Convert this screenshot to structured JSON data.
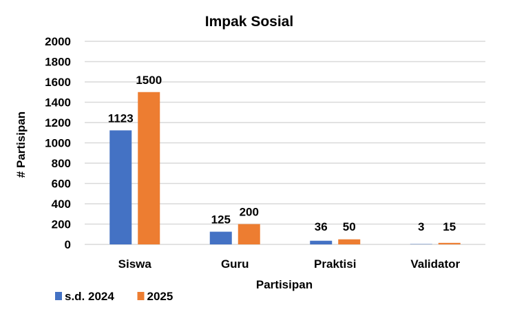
{
  "chart_data": {
    "type": "bar",
    "title": "Impak Sosial",
    "xlabel": "Partisipan",
    "ylabel": "# Partisipan",
    "categories": [
      "Siswa",
      "Guru",
      "Praktisi",
      "Validator"
    ],
    "series": [
      {
        "name": "s.d. 2024",
        "color": "#4472C4",
        "values": [
          1123,
          125,
          36,
          3
        ]
      },
      {
        "name": "2025",
        "color": "#ED7D31",
        "values": [
          1500,
          200,
          50,
          15
        ]
      }
    ],
    "ylim": [
      0,
      2000
    ],
    "yticks": [
      0,
      200,
      400,
      600,
      800,
      1000,
      1200,
      1400,
      1600,
      1800,
      2000
    ],
    "grid": true,
    "legend": "bottom-left",
    "data_labels": true
  }
}
